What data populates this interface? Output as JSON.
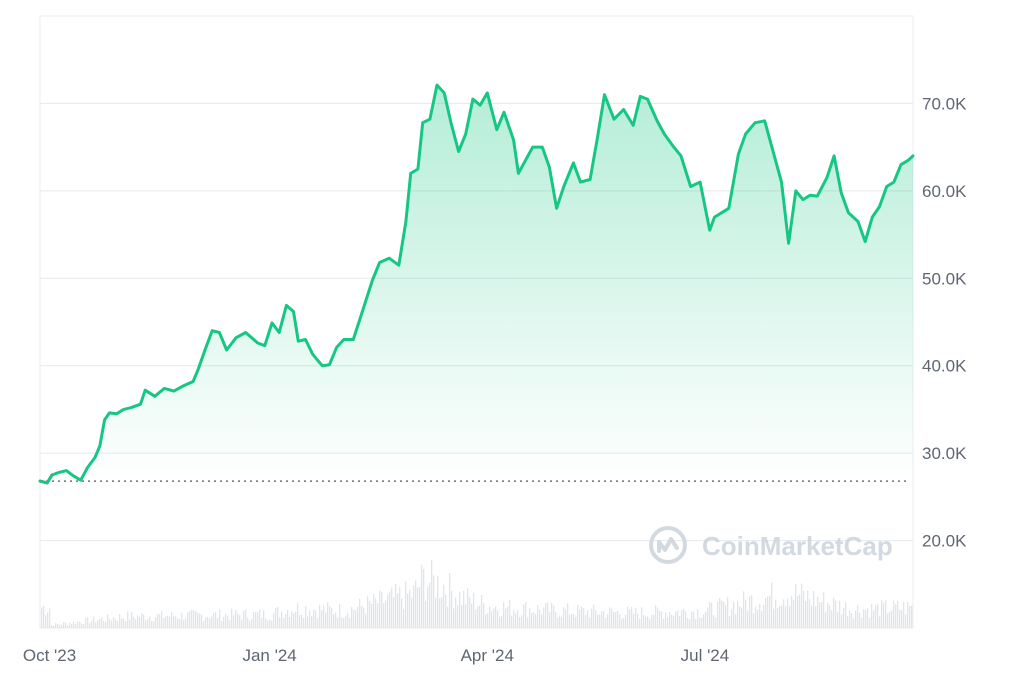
{
  "watermark": {
    "text": "CoinMarketCap",
    "icon": "coinmarketcap-logo-icon"
  },
  "colors": {
    "up_line": "#16c784",
    "down_line": "#ea3943",
    "grid": "#e6e8ec",
    "baseline_dots": "#6b7280",
    "volume": "#c9ced6",
    "label": "#5f6673"
  },
  "chart_data": {
    "type": "area",
    "title": "",
    "xlabel": "",
    "ylabel": "",
    "grid": true,
    "x_axis_labels": [
      "Oct '23",
      "Jan '24",
      "Apr '24",
      "Jul '24"
    ],
    "x_axis_label_dates": [
      "2023-10-01",
      "2024-01-01",
      "2024-04-01",
      "2024-07-01"
    ],
    "y_axis_labels": [
      "70.0K",
      "60.0K",
      "50.0K",
      "40.0K",
      "30.0K",
      "20.0K"
    ],
    "y_axis_values": [
      70000,
      60000,
      50000,
      40000,
      30000,
      20000
    ],
    "ylim": [
      10000,
      80000
    ],
    "xlim": [
      "2023-09-27",
      "2024-09-26"
    ],
    "baseline_value": 26800,
    "series": [
      {
        "x": [
          "2023-09-27",
          "2023-09-30",
          "2023-10-02",
          "2023-10-05",
          "2023-10-08",
          "2023-10-11",
          "2023-10-14",
          "2023-10-17",
          "2023-10-20",
          "2023-10-22",
          "2023-10-24",
          "2023-10-26",
          "2023-10-29",
          "2023-11-01",
          "2023-11-04",
          "2023-11-08",
          "2023-11-10",
          "2023-11-14",
          "2023-11-18",
          "2023-11-22",
          "2023-11-26",
          "2023-11-30",
          "2023-12-02",
          "2023-12-05",
          "2023-12-08",
          "2023-12-11",
          "2023-12-14",
          "2023-12-18",
          "2023-12-22",
          "2023-12-27",
          "2023-12-30",
          "2024-01-02",
          "2024-01-05",
          "2024-01-08",
          "2024-01-11",
          "2024-01-13",
          "2024-01-16",
          "2024-01-19",
          "2024-01-23",
          "2024-01-26",
          "2024-01-29",
          "2024-02-01",
          "2024-02-05",
          "2024-02-09",
          "2024-02-13",
          "2024-02-16",
          "2024-02-20",
          "2024-02-24",
          "2024-02-27",
          "2024-02-29",
          "2024-03-03",
          "2024-03-05",
          "2024-03-08",
          "2024-03-11",
          "2024-03-14",
          "2024-03-17",
          "2024-03-20",
          "2024-03-23",
          "2024-03-26",
          "2024-03-29",
          "2024-04-01",
          "2024-04-05",
          "2024-04-08",
          "2024-04-12",
          "2024-04-14",
          "2024-04-17",
          "2024-04-20",
          "2024-04-24",
          "2024-04-27",
          "2024-04-30",
          "2024-05-03",
          "2024-05-07",
          "2024-05-10",
          "2024-05-14",
          "2024-05-17",
          "2024-05-20",
          "2024-05-24",
          "2024-05-28",
          "2024-06-01",
          "2024-06-04",
          "2024-06-07",
          "2024-06-11",
          "2024-06-14",
          "2024-06-18",
          "2024-06-21",
          "2024-06-25",
          "2024-06-29",
          "2024-07-03",
          "2024-07-05",
          "2024-07-08",
          "2024-07-11",
          "2024-07-15",
          "2024-07-18",
          "2024-07-22",
          "2024-07-26",
          "2024-07-29",
          "2024-08-02",
          "2024-08-05",
          "2024-08-08",
          "2024-08-11",
          "2024-08-14",
          "2024-08-17",
          "2024-08-21",
          "2024-08-24",
          "2024-08-27",
          "2024-08-30",
          "2024-09-03",
          "2024-09-06",
          "2024-09-09",
          "2024-09-12",
          "2024-09-15",
          "2024-09-18",
          "2024-09-21",
          "2024-09-24",
          "2024-09-26"
        ],
        "values": [
          26800,
          26600,
          27500,
          27800,
          28000,
          27400,
          26900,
          28400,
          29500,
          30800,
          33800,
          34600,
          34500,
          35000,
          35200,
          35600,
          37200,
          36500,
          37400,
          37100,
          37700,
          38200,
          39500,
          41800,
          44000,
          43800,
          41800,
          43200,
          43800,
          42600,
          42300,
          44900,
          43800,
          46900,
          46200,
          42800,
          43000,
          41300,
          40000,
          40100,
          42100,
          43000,
          43000,
          46400,
          49800,
          51800,
          52300,
          51500,
          56500,
          62000,
          62500,
          67800,
          68200,
          72100,
          71200,
          67600,
          64500,
          66500,
          70500,
          69800,
          71200,
          67000,
          69000,
          65800,
          62000,
          63500,
          65000,
          65000,
          62700,
          58000,
          60500,
          63200,
          61000,
          61300,
          66000,
          71000,
          68200,
          69300,
          67500,
          70800,
          70500,
          68000,
          66500,
          65000,
          64000,
          60500,
          61000,
          55500,
          57000,
          57500,
          58000,
          64200,
          66500,
          67800,
          68000,
          65000,
          61000,
          54000,
          60000,
          59000,
          59500,
          59400,
          61500,
          64000,
          59800,
          57500,
          56500,
          54200,
          57000,
          58200,
          60500,
          61000,
          63000,
          63500,
          64000
        ]
      }
    ],
    "volume_series": {
      "x": [
        "2023-10-01",
        "2023-11-01",
        "2023-12-01",
        "2024-01-01",
        "2024-01-11",
        "2024-02-01",
        "2024-03-01",
        "2024-03-05",
        "2024-03-13",
        "2024-03-20",
        "2024-04-01",
        "2024-05-01",
        "2024-06-01",
        "2024-07-01",
        "2024-08-05",
        "2024-09-01",
        "2024-09-26"
      ],
      "values": [
        0.05,
        0.2,
        0.22,
        0.24,
        0.35,
        0.3,
        0.6,
        0.85,
        0.75,
        0.55,
        0.38,
        0.3,
        0.26,
        0.3,
        0.62,
        0.32,
        0.36
      ]
    }
  }
}
